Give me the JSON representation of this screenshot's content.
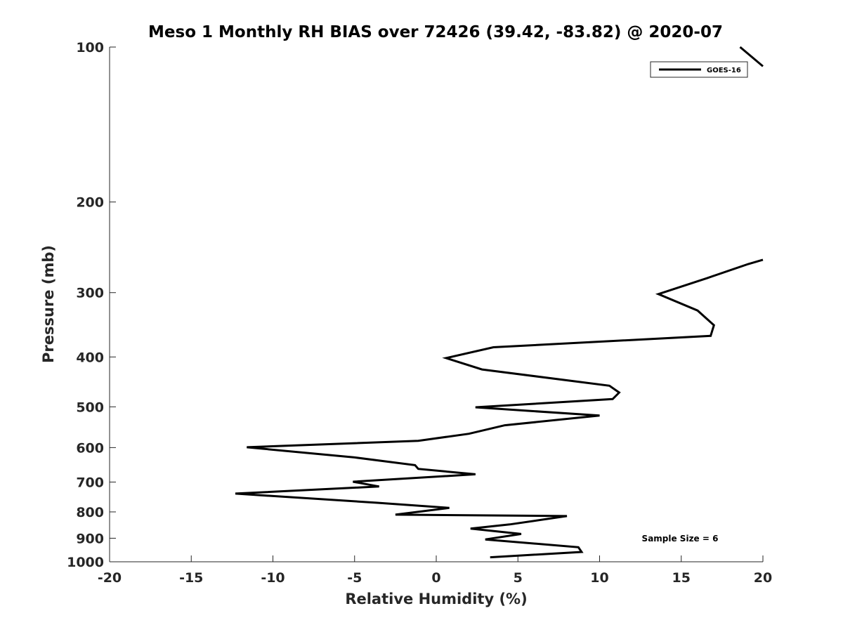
{
  "chart_data": {
    "type": "line",
    "title": "Meso 1 Monthly RH BIAS over 72426 (39.42, -83.82) @ 2020-07",
    "xlabel": "Relative Humidity (%)",
    "ylabel": "Pressure (mb)",
    "xlim": [
      -20,
      20
    ],
    "ylim": [
      100,
      1000
    ],
    "yscale": "log",
    "y_reversed": true,
    "x_ticks": [
      -20,
      -15,
      -10,
      -5,
      0,
      5,
      10,
      15,
      20
    ],
    "x_tick_labels": [
      "-20",
      "-15",
      "-10",
      "-5",
      "0",
      "5",
      "10",
      "15",
      "20"
    ],
    "y_ticks": [
      100,
      200,
      300,
      400,
      500,
      600,
      700,
      800,
      900,
      1000
    ],
    "y_tick_labels": [
      "100",
      "200",
      "300",
      "400",
      "500",
      "600",
      "700",
      "800",
      "900",
      "1000"
    ],
    "grid": false,
    "legend_position": "top-right",
    "annotation": "Sample Size = 6",
    "series": [
      {
        "name": "GOES-16",
        "color": "#000000",
        "points": [
          [
            3.3,
            980
          ],
          [
            8.9,
            957
          ],
          [
            8.7,
            937
          ],
          [
            3.0,
            905
          ],
          [
            5.2,
            883
          ],
          [
            2.1,
            862
          ],
          [
            4.5,
            846
          ],
          [
            8.0,
            815
          ],
          [
            -2.5,
            810
          ],
          [
            0.8,
            786
          ],
          [
            -3.6,
            768
          ],
          [
            -12.3,
            737
          ],
          [
            -3.5,
            714
          ],
          [
            -5.1,
            699
          ],
          [
            2.4,
            676
          ],
          [
            -1.1,
            660
          ],
          [
            -1.3,
            649
          ],
          [
            -5.0,
            627
          ],
          [
            -11.6,
            599
          ],
          [
            -1.1,
            582
          ],
          [
            2.0,
            564
          ],
          [
            4.2,
            543
          ],
          [
            10.0,
            520
          ],
          [
            2.4,
            501
          ],
          [
            10.8,
            483
          ],
          [
            11.2,
            469
          ],
          [
            10.6,
            455
          ],
          [
            2.8,
            423
          ],
          [
            0.6,
            402
          ],
          [
            3.5,
            383
          ],
          [
            16.8,
            364
          ],
          [
            17.0,
            347
          ],
          [
            16.0,
            325
          ],
          [
            13.6,
            302
          ],
          [
            16.6,
            281
          ],
          [
            19.1,
            264
          ],
          [
            20.0,
            259
          ]
        ],
        "points_top": [
          [
            18.6,
            100
          ],
          [
            20.0,
            109
          ]
        ]
      }
    ]
  }
}
